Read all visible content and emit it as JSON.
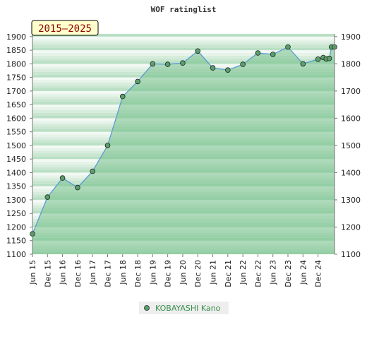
{
  "chart_data": {
    "type": "area",
    "title": "WOF ratinglist",
    "range_label": "2015–2025",
    "y_ticks": [
      1100,
      1150,
      1200,
      1250,
      1300,
      1350,
      1400,
      1450,
      1500,
      1550,
      1600,
      1650,
      1700,
      1750,
      1800,
      1850,
      1900
    ],
    "y_ticks_right": [
      1100,
      1200,
      1300,
      1400,
      1500,
      1600,
      1700,
      1800,
      1900
    ],
    "ylim": [
      1100,
      1910
    ],
    "x_ticks": [
      "Jun 15",
      "Dec 15",
      "Jun 16",
      "Dec 16",
      "Jun 17",
      "Dec 17",
      "Jun 18",
      "Dec 18",
      "Jun 19",
      "Dec 19",
      "Jun 20",
      "Dec 20",
      "Jun 21",
      "Dec 21",
      "Jun 22",
      "Dec 22",
      "Jun 23",
      "Dec 23",
      "Jun 24",
      "Dec 24"
    ],
    "series": [
      {
        "name": "KOBAYASHI Kano",
        "x": [
          0,
          1,
          2,
          3,
          4,
          5,
          6,
          7,
          8,
          9,
          10,
          11,
          12,
          13,
          14,
          15,
          16,
          17,
          18,
          19,
          19.35,
          19.55,
          19.75,
          19.9,
          20.1
        ],
        "y": [
          1175,
          1310,
          1380,
          1345,
          1405,
          1500,
          1680,
          1735,
          1800,
          1798,
          1803,
          1847,
          1785,
          1777,
          1798,
          1840,
          1835,
          1862,
          1800,
          1817,
          1823,
          1818,
          1820,
          1862,
          1862
        ]
      }
    ],
    "legend_position": "bottom-center",
    "colors": {
      "line": "#5b9bd5",
      "marker_fill": "#5aa06a",
      "area": "#74c08a",
      "range_box": "#ffffcc"
    }
  }
}
